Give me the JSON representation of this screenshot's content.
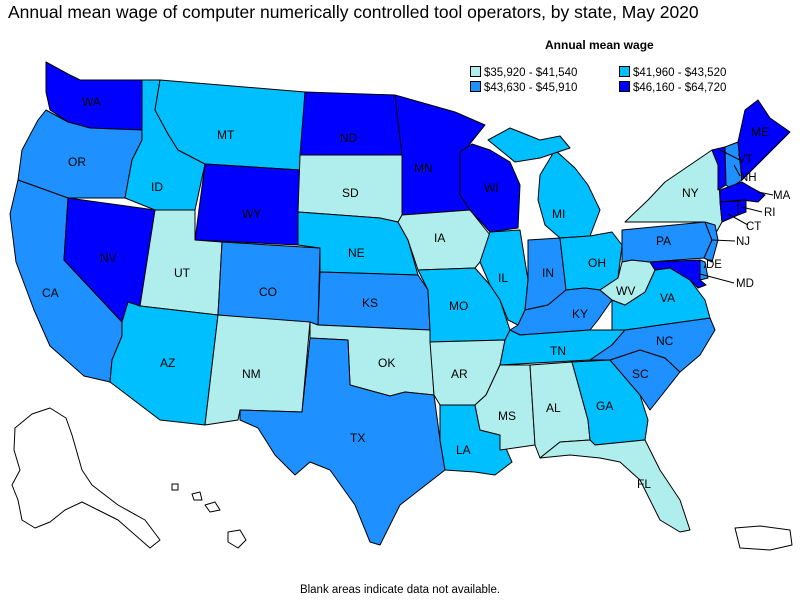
{
  "title": "Annual mean wage of computer numerically controlled tool operators, by state, May 2020",
  "legend": {
    "title": "Annual mean wage",
    "bins": [
      {
        "label": "$35,920 - $41,540",
        "color": "#b0eeee"
      },
      {
        "label": "$41,960 - $43,520",
        "color": "#00bfff"
      },
      {
        "label": "$43,630 - $45,910",
        "color": "#1e90ff"
      },
      {
        "label": "$46,160 - $64,720",
        "color": "#0000ff"
      }
    ]
  },
  "states": {
    "WA": {
      "label": "WA",
      "bin": 3
    },
    "OR": {
      "label": "OR",
      "bin": 2
    },
    "CA": {
      "label": "CA",
      "bin": 2
    },
    "NV": {
      "label": "NV",
      "bin": 3
    },
    "ID": {
      "label": "ID",
      "bin": 1
    },
    "MT": {
      "label": "MT",
      "bin": 1
    },
    "WY": {
      "label": "WY",
      "bin": 3
    },
    "UT": {
      "label": "UT",
      "bin": 0
    },
    "AZ": {
      "label": "AZ",
      "bin": 1
    },
    "CO": {
      "label": "CO",
      "bin": 2
    },
    "NM": {
      "label": "NM",
      "bin": 0
    },
    "ND": {
      "label": "ND",
      "bin": 3
    },
    "SD": {
      "label": "SD",
      "bin": 0
    },
    "NE": {
      "label": "NE",
      "bin": 1
    },
    "KS": {
      "label": "KS",
      "bin": 2
    },
    "OK": {
      "label": "OK",
      "bin": 0
    },
    "TX": {
      "label": "TX",
      "bin": 2
    },
    "MN": {
      "label": "MN",
      "bin": 3
    },
    "IA": {
      "label": "IA",
      "bin": 0
    },
    "MO": {
      "label": "MO",
      "bin": 1
    },
    "AR": {
      "label": "AR",
      "bin": 0
    },
    "LA": {
      "label": "LA",
      "bin": 1
    },
    "WI": {
      "label": "WI",
      "bin": 3
    },
    "IL": {
      "label": "IL",
      "bin": 1
    },
    "MI": {
      "label": "MI",
      "bin": 1
    },
    "IN": {
      "label": "IN",
      "bin": 2
    },
    "OH": {
      "label": "OH",
      "bin": 1
    },
    "KY": {
      "label": "KY",
      "bin": 2
    },
    "TN": {
      "label": "TN",
      "bin": 1
    },
    "MS": {
      "label": "MS",
      "bin": 0
    },
    "AL": {
      "label": "AL",
      "bin": 0
    },
    "GA": {
      "label": "GA",
      "bin": 1
    },
    "FL": {
      "label": "FL",
      "bin": 0
    },
    "SC": {
      "label": "SC",
      "bin": 2
    },
    "NC": {
      "label": "NC",
      "bin": 2
    },
    "VA": {
      "label": "VA",
      "bin": 1
    },
    "WV": {
      "label": "WV",
      "bin": 0
    },
    "PA": {
      "label": "PA",
      "bin": 2
    },
    "NY": {
      "label": "NY",
      "bin": 0
    },
    "ME": {
      "label": "ME",
      "bin": 3
    },
    "VT": {
      "label": "VT",
      "bin": 3
    },
    "NH": {
      "label": "NH",
      "bin": 2
    },
    "MA": {
      "label": "MA",
      "bin": 3
    },
    "RI": {
      "label": "RI",
      "bin": 3
    },
    "CT": {
      "label": "CT",
      "bin": 3
    },
    "NJ": {
      "label": "NJ",
      "bin": 2
    },
    "DE": {
      "label": "DE",
      "bin": 2
    },
    "MD": {
      "label": "MD",
      "bin": 3
    }
  },
  "footnote": "Blank areas indicate data not available."
}
